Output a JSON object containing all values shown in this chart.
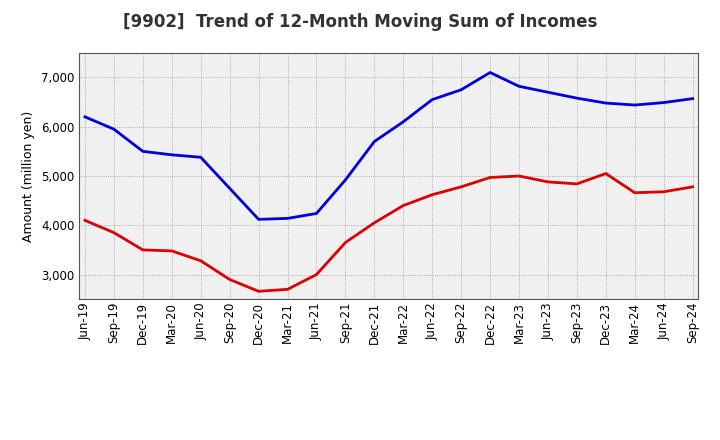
{
  "title": "[9902]  Trend of 12-Month Moving Sum of Incomes",
  "ylabel": "Amount (million yen)",
  "background_color": "#ffffff",
  "plot_bg_color": "#f0f0f0",
  "grid_color": "#999999",
  "labels": [
    "Jun-19",
    "Sep-19",
    "Dec-19",
    "Mar-20",
    "Jun-20",
    "Sep-20",
    "Dec-20",
    "Mar-21",
    "Jun-21",
    "Sep-21",
    "Dec-21",
    "Mar-22",
    "Jun-22",
    "Sep-22",
    "Dec-22",
    "Mar-23",
    "Jun-23",
    "Sep-23",
    "Dec-23",
    "Mar-24",
    "Jun-24",
    "Sep-24"
  ],
  "ordinary_income": [
    6200,
    5950,
    5500,
    5430,
    5380,
    4750,
    4120,
    4140,
    4240,
    4920,
    5700,
    6100,
    6550,
    6750,
    7100,
    6820,
    6700,
    6580,
    6480,
    6440,
    6490,
    6570
  ],
  "net_income": [
    4100,
    3850,
    3500,
    3480,
    3280,
    2900,
    2660,
    2700,
    3000,
    3650,
    4050,
    4400,
    4620,
    4780,
    4970,
    5000,
    4880,
    4840,
    5050,
    4660,
    4680,
    4780
  ],
  "ordinary_color": "#0000dd",
  "net_color": "#dd0000",
  "ylim_min": 2500,
  "ylim_max": 7500,
  "yticks": [
    3000,
    4000,
    5000,
    6000,
    7000
  ],
  "line_width": 2.0,
  "title_fontsize": 12,
  "legend_fontsize": 10,
  "axis_label_fontsize": 9,
  "tick_fontsize": 8.5
}
